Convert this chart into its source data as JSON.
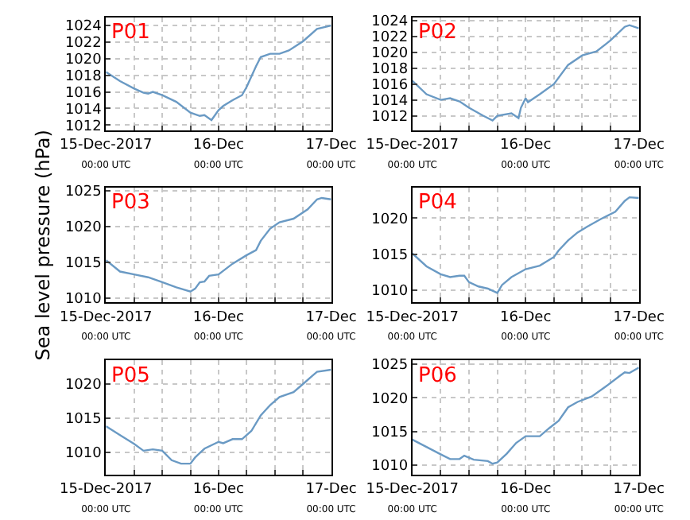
{
  "chart_data": [
    {
      "type": "line",
      "title": "P01",
      "grid": true,
      "xlim": [
        "2017-12-15T00:00",
        "2017-12-17T00:00"
      ],
      "ylim": [
        1011.4,
        1025
      ],
      "yticks": [
        1012,
        1014,
        1016,
        1018,
        1020,
        1022,
        1024
      ],
      "xticks": [
        {
          "value": "2017-12-15T00:00",
          "label": "15-Dec-2017\n00:00 UTC"
        },
        {
          "value": "2017-12-15T06:00",
          "label": null
        },
        {
          "value": "2017-12-15T12:00",
          "label": null
        },
        {
          "value": "2017-12-15T18:00",
          "label": null
        },
        {
          "value": "2017-12-16T00:00",
          "label": "16-Dec\n00:00 UTC"
        },
        {
          "value": "2017-12-16T06:00",
          "label": null
        },
        {
          "value": "2017-12-16T12:00",
          "label": null
        },
        {
          "value": "2017-12-16T18:00",
          "label": null
        },
        {
          "value": "2017-12-17T00:00",
          "label": "17-Dec\n00:00 UTC"
        }
      ],
      "x": [
        "2017-12-15T00:00",
        "2017-12-15T03:00",
        "2017-12-15T06:00",
        "2017-12-15T08:00",
        "2017-12-15T09:00",
        "2017-12-15T10:00",
        "2017-12-15T12:00",
        "2017-12-15T15:00",
        "2017-12-15T18:00",
        "2017-12-15T20:00",
        "2017-12-15T21:00",
        "2017-12-15T22:00",
        "2017-12-15T22:30",
        "2017-12-16T00:00",
        "2017-12-16T01:00",
        "2017-12-16T03:00",
        "2017-12-16T05:00",
        "2017-12-16T06:00",
        "2017-12-16T08:00",
        "2017-12-16T09:00",
        "2017-12-16T11:00",
        "2017-12-16T13:00",
        "2017-12-16T15:00",
        "2017-12-16T18:00",
        "2017-12-16T21:00",
        "2017-12-17T00:00"
      ],
      "series": [
        {
          "color": "#6a9ac4",
          "values": [
            1018.4,
            1017.3,
            1016.4,
            1015.9,
            1015.8,
            1016.0,
            1015.6,
            1014.8,
            1013.5,
            1013.1,
            1013.2,
            1012.8,
            1012.6,
            1013.8,
            1014.3,
            1015.0,
            1015.6,
            1016.6,
            1019.1,
            1020.2,
            1020.6,
            1020.6,
            1021.0,
            1022.1,
            1023.6,
            1024.0
          ]
        }
      ]
    },
    {
      "type": "line",
      "title": "P02",
      "grid": true,
      "xlim": [
        "2017-12-15T00:00",
        "2017-12-17T00:00"
      ],
      "ylim": [
        1010.2,
        1024.4
      ],
      "yticks": [
        1012,
        1014,
        1016,
        1018,
        1020,
        1022,
        1024
      ],
      "xticks": [
        {
          "value": "2017-12-15T00:00",
          "label": "15-Dec-2017\n00:00 UTC"
        },
        {
          "value": "2017-12-15T06:00",
          "label": null
        },
        {
          "value": "2017-12-15T12:00",
          "label": null
        },
        {
          "value": "2017-12-15T18:00",
          "label": null
        },
        {
          "value": "2017-12-16T00:00",
          "label": "16-Dec\n00:00 UTC"
        },
        {
          "value": "2017-12-16T06:00",
          "label": null
        },
        {
          "value": "2017-12-16T12:00",
          "label": null
        },
        {
          "value": "2017-12-16T18:00",
          "label": null
        },
        {
          "value": "2017-12-17T00:00",
          "label": "17-Dec\n00:00 UTC"
        }
      ],
      "x": [
        "2017-12-15T00:00",
        "2017-12-15T03:00",
        "2017-12-15T06:00",
        "2017-12-15T08:00",
        "2017-12-15T10:00",
        "2017-12-15T12:00",
        "2017-12-15T15:00",
        "2017-12-15T17:00",
        "2017-12-15T18:00",
        "2017-12-15T21:00",
        "2017-12-15T22:30",
        "2017-12-15T23:00",
        "2017-12-16T00:00",
        "2017-12-16T00:30",
        "2017-12-16T03:00",
        "2017-12-16T06:00",
        "2017-12-16T09:00",
        "2017-12-16T12:00",
        "2017-12-16T15:00",
        "2017-12-16T18:00",
        "2017-12-16T21:00",
        "2017-12-16T22:00",
        "2017-12-17T00:00"
      ],
      "series": [
        {
          "color": "#6a9ac4",
          "values": [
            1016.4,
            1014.7,
            1014.0,
            1014.2,
            1013.8,
            1013.0,
            1012.0,
            1011.4,
            1012.0,
            1012.3,
            1011.7,
            1013.0,
            1014.2,
            1013.7,
            1014.7,
            1016.0,
            1018.4,
            1019.6,
            1020.1,
            1021.5,
            1023.2,
            1023.4,
            1023.0
          ]
        }
      ]
    },
    {
      "type": "line",
      "title": "P03",
      "ylabel": "Sea level pressure (hPa)",
      "grid": true,
      "xlim": [
        "2017-12-15T00:00",
        "2017-12-17T00:00"
      ],
      "ylim": [
        1009.4,
        1025.4
      ],
      "yticks": [
        1010,
        1015,
        1020,
        1025
      ],
      "xticks": [
        {
          "value": "2017-12-15T00:00",
          "label": "15-Dec-2017\n00:00 UTC"
        },
        {
          "value": "2017-12-15T06:00",
          "label": null
        },
        {
          "value": "2017-12-15T12:00",
          "label": null
        },
        {
          "value": "2017-12-15T18:00",
          "label": null
        },
        {
          "value": "2017-12-16T00:00",
          "label": "16-Dec\n00:00 UTC"
        },
        {
          "value": "2017-12-16T06:00",
          "label": null
        },
        {
          "value": "2017-12-16T12:00",
          "label": null
        },
        {
          "value": "2017-12-16T18:00",
          "label": null
        },
        {
          "value": "2017-12-17T00:00",
          "label": "17-Dec\n00:00 UTC"
        }
      ],
      "x": [
        "2017-12-15T00:00",
        "2017-12-15T03:00",
        "2017-12-15T06:00",
        "2017-12-15T09:00",
        "2017-12-15T12:00",
        "2017-12-15T15:00",
        "2017-12-15T18:00",
        "2017-12-15T19:00",
        "2017-12-15T20:00",
        "2017-12-15T21:00",
        "2017-12-15T22:00",
        "2017-12-16T00:00",
        "2017-12-16T03:00",
        "2017-12-16T06:00",
        "2017-12-16T08:00",
        "2017-12-16T09:00",
        "2017-12-16T11:00",
        "2017-12-16T13:00",
        "2017-12-16T16:00",
        "2017-12-16T19:00",
        "2017-12-16T21:00",
        "2017-12-16T22:00",
        "2017-12-17T00:00"
      ],
      "series": [
        {
          "color": "#6a9ac4",
          "values": [
            1015.3,
            1013.7,
            1013.3,
            1012.9,
            1012.2,
            1011.5,
            1010.9,
            1011.3,
            1012.2,
            1012.3,
            1013.1,
            1013.3,
            1014.8,
            1016.0,
            1016.7,
            1018.0,
            1019.7,
            1020.6,
            1021.1,
            1022.4,
            1023.8,
            1024.0,
            1023.8
          ]
        }
      ]
    },
    {
      "type": "line",
      "title": "P04",
      "grid": true,
      "xlim": [
        "2017-12-15T00:00",
        "2017-12-17T00:00"
      ],
      "ylim": [
        1008.3,
        1024.2
      ],
      "yticks": [
        1010,
        1015,
        1020
      ],
      "xticks": [
        {
          "value": "2017-12-15T00:00",
          "label": "15-Dec-2017\n00:00 UTC"
        },
        {
          "value": "2017-12-15T06:00",
          "label": null
        },
        {
          "value": "2017-12-15T12:00",
          "label": null
        },
        {
          "value": "2017-12-15T18:00",
          "label": null
        },
        {
          "value": "2017-12-16T00:00",
          "label": "16-Dec\n00:00 UTC"
        },
        {
          "value": "2017-12-16T06:00",
          "label": null
        },
        {
          "value": "2017-12-16T12:00",
          "label": null
        },
        {
          "value": "2017-12-16T18:00",
          "label": null
        },
        {
          "value": "2017-12-17T00:00",
          "label": "17-Dec\n00:00 UTC"
        }
      ],
      "x": [
        "2017-12-15T00:00",
        "2017-12-15T03:00",
        "2017-12-15T06:00",
        "2017-12-15T08:00",
        "2017-12-15T10:00",
        "2017-12-15T11:00",
        "2017-12-15T12:00",
        "2017-12-15T14:00",
        "2017-12-15T16:00",
        "2017-12-15T18:00",
        "2017-12-15T19:00",
        "2017-12-15T21:00",
        "2017-12-16T00:00",
        "2017-12-16T03:00",
        "2017-12-16T06:00",
        "2017-12-16T07:00",
        "2017-12-16T09:00",
        "2017-12-16T11:00",
        "2017-12-16T13:00",
        "2017-12-16T16:00",
        "2017-12-16T19:00",
        "2017-12-16T21:00",
        "2017-12-16T22:00",
        "2017-12-17T00:00"
      ],
      "series": [
        {
          "color": "#6a9ac4",
          "values": [
            1015.1,
            1013.3,
            1012.2,
            1011.8,
            1012.0,
            1012.0,
            1011.1,
            1010.5,
            1010.2,
            1009.6,
            1010.7,
            1011.8,
            1012.9,
            1013.4,
            1014.6,
            1015.5,
            1016.9,
            1018.0,
            1018.8,
            1019.9,
            1020.9,
            1022.4,
            1022.9,
            1022.8
          ]
        }
      ]
    },
    {
      "type": "line",
      "title": "P05",
      "grid": true,
      "xlim": [
        "2017-12-15T00:00",
        "2017-12-17T00:00"
      ],
      "ylim": [
        1006.7,
        1023.5
      ],
      "yticks": [
        1010,
        1015,
        1020
      ],
      "xticks": [
        {
          "value": "2017-12-15T00:00",
          "label": "15-Dec-2017\n00:00 UTC"
        },
        {
          "value": "2017-12-15T06:00",
          "label": null
        },
        {
          "value": "2017-12-15T12:00",
          "label": null
        },
        {
          "value": "2017-12-15T18:00",
          "label": null
        },
        {
          "value": "2017-12-16T00:00",
          "label": "16-Dec\n00:00 UTC"
        },
        {
          "value": "2017-12-16T06:00",
          "label": null
        },
        {
          "value": "2017-12-16T12:00",
          "label": null
        },
        {
          "value": "2017-12-16T18:00",
          "label": null
        },
        {
          "value": "2017-12-17T00:00",
          "label": "17-Dec\n00:00 UTC"
        }
      ],
      "x": [
        "2017-12-15T00:00",
        "2017-12-15T03:00",
        "2017-12-15T06:00",
        "2017-12-15T08:00",
        "2017-12-15T10:00",
        "2017-12-15T12:00",
        "2017-12-15T14:00",
        "2017-12-15T16:00",
        "2017-12-15T18:00",
        "2017-12-15T19:00",
        "2017-12-15T21:00",
        "2017-12-16T00:00",
        "2017-12-16T01:00",
        "2017-12-16T03:00",
        "2017-12-16T05:00",
        "2017-12-16T07:00",
        "2017-12-16T09:00",
        "2017-12-16T11:00",
        "2017-12-16T13:00",
        "2017-12-16T16:00",
        "2017-12-16T18:00",
        "2017-12-16T20:00",
        "2017-12-16T21:00",
        "2017-12-17T00:00"
      ],
      "series": [
        {
          "color": "#6a9ac4",
          "values": [
            1013.8,
            1012.5,
            1011.2,
            1010.2,
            1010.4,
            1010.2,
            1008.8,
            1008.3,
            1008.3,
            1009.2,
            1010.5,
            1011.5,
            1011.3,
            1011.9,
            1011.9,
            1013.1,
            1015.4,
            1016.9,
            1018.1,
            1018.8,
            1020.0,
            1021.2,
            1021.8,
            1022.1
          ]
        }
      ]
    },
    {
      "type": "line",
      "title": "P06",
      "grid": true,
      "xlim": [
        "2017-12-15T00:00",
        "2017-12-17T00:00"
      ],
      "ylim": [
        1008.6,
        1025.6
      ],
      "yticks": [
        1010,
        1015,
        1020,
        1025
      ],
      "xticks": [
        {
          "value": "2017-12-15T00:00",
          "label": "15-Dec-2017\n00:00 UTC"
        },
        {
          "value": "2017-12-15T06:00",
          "label": null
        },
        {
          "value": "2017-12-15T12:00",
          "label": null
        },
        {
          "value": "2017-12-15T18:00",
          "label": null
        },
        {
          "value": "2017-12-16T00:00",
          "label": "16-Dec\n00:00 UTC"
        },
        {
          "value": "2017-12-16T06:00",
          "label": null
        },
        {
          "value": "2017-12-16T12:00",
          "label": null
        },
        {
          "value": "2017-12-16T18:00",
          "label": null
        },
        {
          "value": "2017-12-17T00:00",
          "label": "17-Dec\n00:00 UTC"
        }
      ],
      "x": [
        "2017-12-15T00:00",
        "2017-12-15T03:00",
        "2017-12-15T06:00",
        "2017-12-15T08:00",
        "2017-12-15T10:00",
        "2017-12-15T11:00",
        "2017-12-15T13:00",
        "2017-12-15T16:00",
        "2017-12-15T17:00",
        "2017-12-15T18:00",
        "2017-12-15T20:00",
        "2017-12-15T22:00",
        "2017-12-16T00:00",
        "2017-12-16T03:00",
        "2017-12-16T05:00",
        "2017-12-16T07:00",
        "2017-12-16T09:00",
        "2017-12-16T11:00",
        "2017-12-16T14:00",
        "2017-12-16T17:00",
        "2017-12-16T20:00",
        "2017-12-16T21:00",
        "2017-12-16T22:00",
        "2017-12-17T00:00"
      ],
      "series": [
        {
          "color": "#6a9ac4",
          "values": [
            1013.8,
            1012.7,
            1011.6,
            1010.9,
            1010.9,
            1011.4,
            1010.8,
            1010.6,
            1010.2,
            1010.4,
            1011.7,
            1013.3,
            1014.3,
            1014.3,
            1015.5,
            1016.6,
            1018.6,
            1019.4,
            1020.2,
            1021.7,
            1023.3,
            1023.8,
            1023.7,
            1024.5
          ]
        }
      ]
    }
  ]
}
